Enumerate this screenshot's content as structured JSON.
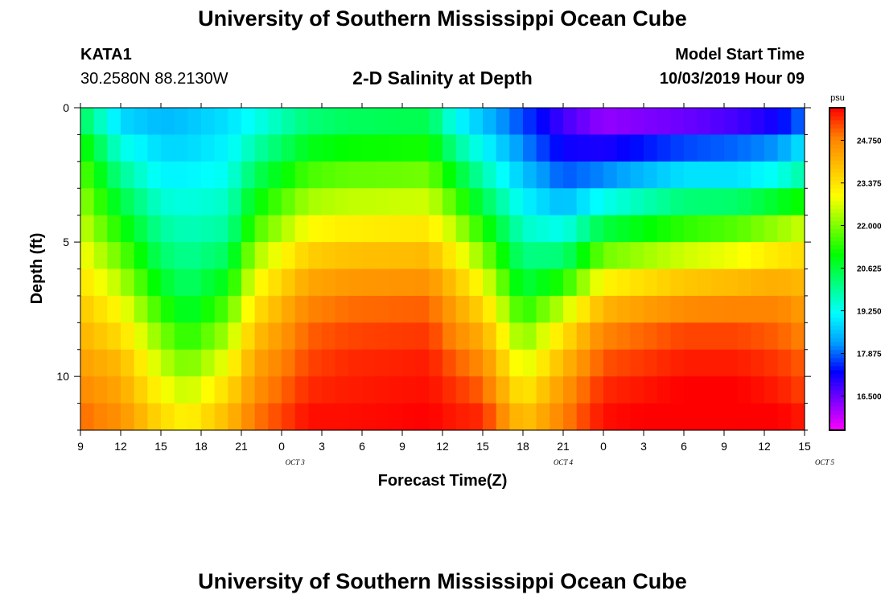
{
  "header": {
    "title": "University of Southern Mississippi Ocean Cube",
    "station": "KATA1",
    "coords": "30.2580N 88.2130W",
    "subtitle": "2-D Salinity at Depth",
    "model_start_label": "Model Start Time",
    "model_start_value": "10/03/2019 Hour 09"
  },
  "footer": {
    "title": "University of Southern Mississippi Ocean Cube"
  },
  "chart_data": {
    "type": "heatmap",
    "title": "2-D Salinity at Depth",
    "xlabel": "Forecast Time(Z)",
    "ylabel": "Depth (ft)",
    "x_tick_labels": [
      "9",
      "12",
      "15",
      "18",
      "21",
      "0",
      "3",
      "6",
      "9",
      "12",
      "15",
      "18",
      "21",
      "0",
      "3",
      "6",
      "9",
      "12",
      "15"
    ],
    "date_labels": [
      {
        "label": "OCT 3",
        "hour": 16
      },
      {
        "label": "OCT 4",
        "hour": 36
      },
      {
        "label": "OCT 5",
        "hour": 55.5
      }
    ],
    "x_range_hours": [
      0,
      54
    ],
    "y_ticks": [
      0,
      5,
      10
    ],
    "ylim": [
      0,
      12
    ],
    "y_inverted": true,
    "colorbar": {
      "unit": "psu",
      "ticks": [
        16.5,
        17.875,
        19.25,
        20.625,
        22.0,
        23.375,
        24.75
      ],
      "tick_labels": [
        "16.500",
        "17.875",
        "19.250",
        "20.625",
        "22.000",
        "23.375",
        "24.750"
      ],
      "range": [
        15.4,
        25.8
      ],
      "palette": [
        "#ff00ff",
        "#8000ff",
        "#0000ff",
        "#00a0ff",
        "#00ffff",
        "#00ff80",
        "#00ff00",
        "#80ff00",
        "#ffff00",
        "#ffc000",
        "#ff8000",
        "#ff0000"
      ]
    },
    "hour_step": 1,
    "depth_levels": [
      0.5,
      1.5,
      2.5,
      3.5,
      4.5,
      5.5,
      6.5,
      7.5,
      8.5,
      9.5,
      10.5,
      11.5
    ],
    "profile_keys": [
      {
        "hour": 0,
        "values": [
          20.5,
          21.3,
          21.8,
          22.2,
          22.6,
          23.0,
          23.4,
          23.8,
          24.1,
          24.4,
          24.7,
          25.0
        ]
      },
      {
        "hour": 3,
        "values": [
          18.8,
          19.4,
          20.0,
          20.6,
          21.2,
          21.8,
          22.4,
          23.0,
          23.5,
          24.0,
          24.3,
          24.6
        ]
      },
      {
        "hour": 6,
        "values": [
          18.5,
          18.8,
          19.1,
          19.5,
          19.9,
          20.3,
          20.8,
          21.4,
          22.0,
          22.5,
          23.0,
          23.5
        ]
      },
      {
        "hour": 8,
        "values": [
          18.6,
          18.8,
          19.1,
          19.4,
          19.7,
          20.0,
          20.3,
          20.7,
          21.3,
          21.9,
          22.5,
          23.1
        ]
      },
      {
        "hour": 11,
        "values": [
          18.9,
          19.1,
          19.3,
          19.6,
          19.9,
          20.4,
          21.0,
          21.7,
          22.3,
          22.9,
          23.5,
          24.0
        ]
      },
      {
        "hour": 13,
        "values": [
          19.3,
          19.8,
          20.4,
          21.0,
          21.6,
          22.3,
          22.9,
          23.4,
          23.9,
          24.3,
          24.6,
          24.9
        ]
      },
      {
        "hour": 17,
        "values": [
          20.2,
          20.9,
          21.6,
          22.3,
          23.0,
          23.7,
          24.3,
          24.8,
          25.1,
          25.3,
          25.5,
          25.7
        ]
      },
      {
        "hour": 20,
        "values": [
          20.4,
          21.1,
          21.8,
          22.5,
          23.2,
          23.9,
          24.5,
          25.0,
          25.3,
          25.5,
          25.6,
          25.7
        ]
      },
      {
        "hour": 26,
        "values": [
          20.5,
          21.2,
          21.9,
          22.6,
          23.3,
          24.0,
          24.6,
          25.1,
          25.4,
          25.6,
          25.7,
          25.8
        ]
      },
      {
        "hour": 28,
        "values": [
          19.2,
          20.0,
          20.8,
          21.6,
          22.4,
          23.1,
          23.8,
          24.3,
          24.7,
          25.1,
          25.4,
          25.6
        ]
      },
      {
        "hour": 30,
        "values": [
          18.6,
          19.2,
          19.8,
          20.5,
          21.3,
          22.1,
          22.9,
          23.6,
          24.2,
          24.7,
          25.1,
          25.5
        ]
      },
      {
        "hour": 33,
        "values": [
          17.7,
          18.1,
          18.6,
          19.1,
          19.6,
          20.1,
          20.6,
          21.3,
          22.0,
          22.6,
          23.2,
          23.8
        ]
      },
      {
        "hour": 36,
        "values": [
          16.8,
          17.2,
          17.8,
          18.5,
          19.3,
          20.2,
          21.3,
          22.5,
          23.4,
          24.0,
          24.5,
          24.8
        ]
      },
      {
        "hour": 39,
        "values": [
          16.2,
          17.1,
          18.1,
          19.3,
          20.6,
          21.9,
          23.1,
          24.1,
          24.8,
          25.2,
          25.5,
          25.7
        ]
      },
      {
        "hour": 45,
        "values": [
          16.5,
          17.7,
          18.9,
          20.2,
          21.4,
          22.6,
          23.8,
          24.7,
          25.3,
          25.6,
          25.8,
          25.9
        ]
      },
      {
        "hour": 49,
        "values": [
          16.8,
          17.9,
          18.9,
          20.3,
          21.7,
          22.9,
          24.0,
          24.8,
          25.3,
          25.6,
          25.8,
          25.9
        ]
      },
      {
        "hour": 52,
        "values": [
          17.2,
          18.2,
          19.3,
          20.8,
          22.2,
          23.3,
          24.2,
          24.8,
          25.1,
          25.4,
          25.6,
          25.8
        ]
      },
      {
        "hour": 54,
        "values": [
          18.0,
          19.0,
          19.9,
          21.2,
          22.6,
          23.5,
          24.0,
          24.4,
          24.8,
          25.1,
          25.3,
          25.6
        ]
      }
    ]
  }
}
